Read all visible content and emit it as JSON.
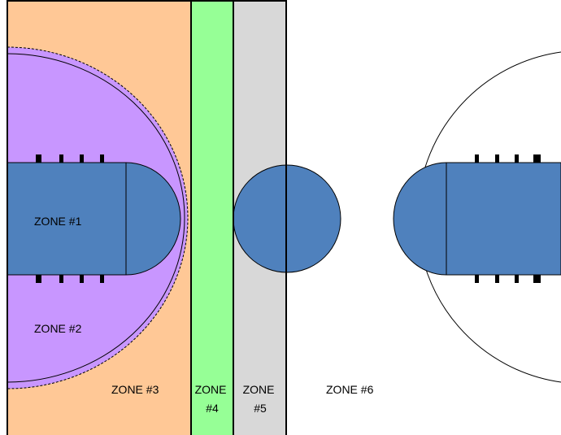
{
  "zones": [
    {
      "id": "zone-1",
      "lines": [
        "ZONE #1"
      ]
    },
    {
      "id": "zone-2",
      "lines": [
        "ZONE #2"
      ]
    },
    {
      "id": "zone-3",
      "lines": [
        "ZONE #3"
      ]
    },
    {
      "id": "zone-4",
      "lines": [
        "ZONE",
        "#4"
      ]
    },
    {
      "id": "zone-5",
      "lines": [
        "ZONE",
        "#5"
      ]
    },
    {
      "id": "zone-6",
      "lines": [
        "ZONE #6"
      ]
    }
  ],
  "colors": {
    "zone_3_orange": "#FFC896",
    "zone_2_purple": "#C896FF",
    "zone_4_green": "#96FF96",
    "zone_5_gray": "#D8D8D8",
    "zone_6_white": "#FFFFFF",
    "key_blue": "#4F81BD",
    "outline": "#000000"
  }
}
